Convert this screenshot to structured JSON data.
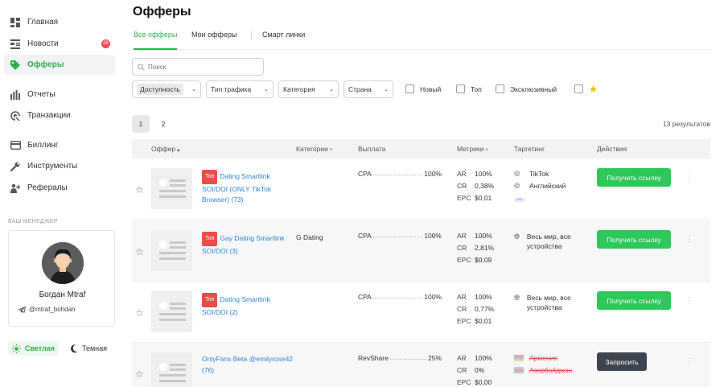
{
  "sidebar": {
    "items": [
      {
        "label": "Главная",
        "icon": "dashboard-icon"
      },
      {
        "label": "Новости",
        "icon": "news-icon",
        "badge": "28"
      },
      {
        "label": "Офферы",
        "icon": "tag-icon",
        "active": true
      },
      {
        "label": "Отчеты",
        "icon": "bar-chart-icon"
      },
      {
        "label": "Транзакции",
        "icon": "transactions-icon"
      },
      {
        "label": "Биллинг",
        "icon": "card-icon"
      },
      {
        "label": "Инструменты",
        "icon": "wrench-icon"
      },
      {
        "label": "Рефералы",
        "icon": "referrals-icon"
      }
    ],
    "manager_label": "ВАШ МЕНЕДЖЕР",
    "manager_name": "Богдан Mtraf",
    "manager_tg": "@mtraf_bohdan",
    "theme_light": "Светлая",
    "theme_dark": "Темная"
  },
  "main": {
    "title": "Офферы",
    "tabs": [
      "Все офферы",
      "Мои офферы",
      "Смарт линки"
    ],
    "search_placeholder": "Поиск",
    "filters": [
      "Доступность",
      "Тип трафика",
      "Категория",
      "Страна"
    ],
    "checkboxes": [
      "Новый",
      "Топ",
      "Эксклюзивный"
    ],
    "pages": [
      "1",
      "2"
    ],
    "results": "13  результатов"
  },
  "table": {
    "headers": {
      "offer": "Оффер",
      "categories": "Категории",
      "payout": "Выплата",
      "metrics": "Метрики",
      "targeting": "Таргетинг",
      "actions": "Действия"
    },
    "rows": [
      {
        "tag": "Топ",
        "name": "Dating Smartlink SOI/DOI (ONLY TikTok Browser) (73)",
        "category": "",
        "pay_type": "CPA",
        "pay_value": "100%",
        "ar": "100%",
        "cr": "0,38%",
        "epc": "$0,01",
        "targeting": [
          "TikTok",
          "Английский"
        ],
        "action": "Получить ссылку"
      },
      {
        "tag": "Топ",
        "name": "Gay Dating Smartlink SOI/DOI (3)",
        "category": "G Dating",
        "pay_type": "CPA",
        "pay_value": "100%",
        "ar": "100%",
        "cr": "2,81%",
        "epc": "$0,09",
        "targeting": [
          "Весь мир, все устройства"
        ],
        "action": "Получить ссылку"
      },
      {
        "tag": "Топ",
        "name": "Dating Smartlink SOI/DOI (2)",
        "category": "",
        "pay_type": "CPA",
        "pay_value": "100%",
        "ar": "100%",
        "cr": "0,77%",
        "epc": "$0,01",
        "targeting": [
          "Весь мир, все устройства"
        ],
        "action": "Получить ссылку"
      },
      {
        "tag": "",
        "name": "OnlyFans Beta @emilyrose42 (76)",
        "category": "",
        "pay_type": "RevShare",
        "pay_value": "25%",
        "ar": "100%",
        "cr": "0%",
        "epc": "$0,00",
        "targeting": [
          "Армения",
          "Азербайджан"
        ],
        "action": "Запросить"
      }
    ],
    "metric_labels": {
      "ar": "AR",
      "cr": "CR",
      "epc": "EPC"
    }
  },
  "colors": {
    "accent": "#2fb04d",
    "button_green": "#2ec759",
    "button_dark": "#3f4550",
    "tag_red": "#ef4b4b",
    "link": "#2b86d8"
  }
}
